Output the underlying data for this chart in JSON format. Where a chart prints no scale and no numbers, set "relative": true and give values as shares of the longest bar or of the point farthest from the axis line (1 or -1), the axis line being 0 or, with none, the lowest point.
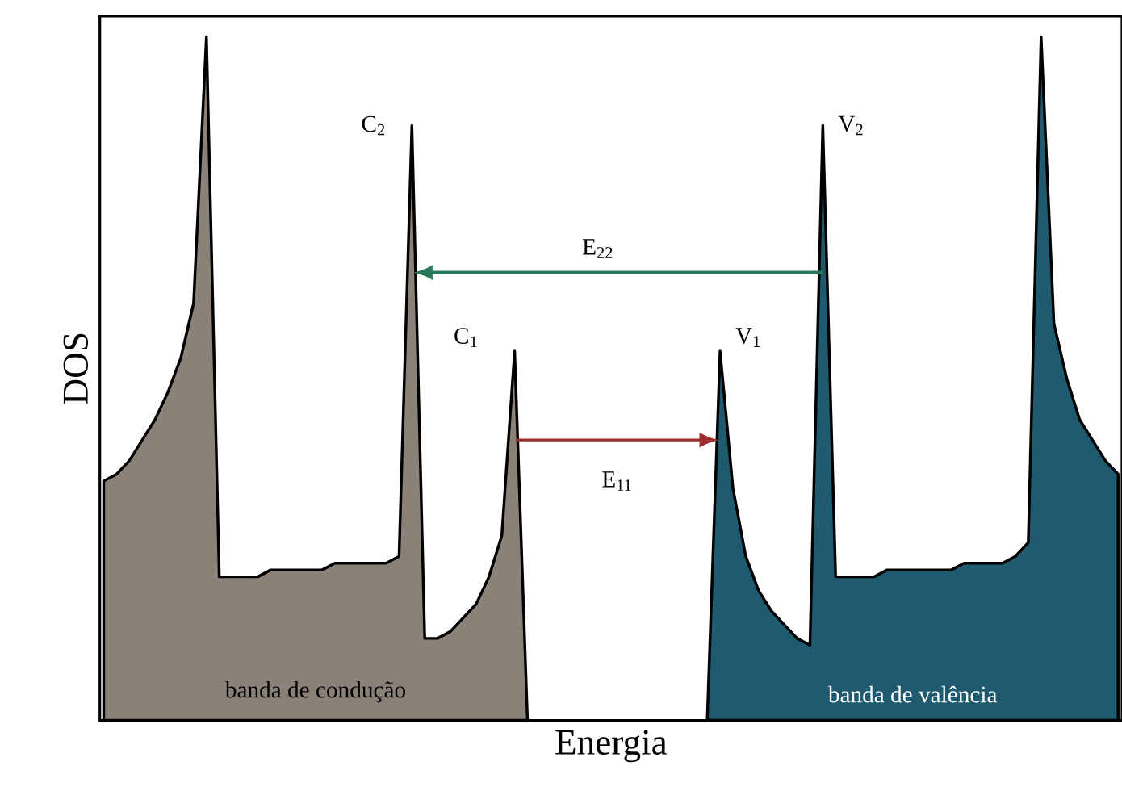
{
  "chart_data": {
    "type": "area",
    "relative": true,
    "xlabel": "Energia",
    "ylabel": "DOS",
    "categories": [
      null,
      null,
      null,
      null,
      null,
      null,
      null,
      null,
      null,
      null,
      null,
      null,
      null,
      null,
      null,
      null,
      null,
      null,
      null,
      null,
      null,
      null,
      null,
      null,
      null,
      null,
      null,
      null,
      null,
      null,
      null,
      null,
      null,
      null,
      null,
      null,
      null,
      null,
      null,
      null,
      null,
      null,
      null,
      null,
      null,
      null,
      null,
      null,
      null,
      null,
      null,
      null,
      null,
      null,
      null,
      null,
      null,
      null,
      null,
      null,
      null,
      null,
      null,
      null,
      null,
      null,
      null,
      null,
      null,
      null,
      null,
      null,
      null,
      null,
      null,
      null,
      null,
      null,
      null,
      null
    ],
    "series": [
      {
        "name": "banda de condução",
        "color": "#8a8279",
        "values": [
          0.35,
          0.36,
          0.38,
          0.41,
          0.44,
          0.48,
          0.53,
          0.61,
          1,
          0.21,
          0.21,
          0.21,
          0.21,
          0.22,
          0.22,
          0.22,
          0.22,
          0.22,
          0.23,
          0.23,
          0.23,
          0.23,
          0.23,
          0.24,
          0.87,
          0.12,
          0.12,
          0.13,
          0.15,
          0.17,
          0.21,
          0.27,
          0.54,
          0,
          null,
          null,
          null,
          null,
          null,
          null,
          null,
          null,
          null,
          null,
          null,
          null,
          null,
          null,
          null,
          null,
          null,
          null,
          null,
          null,
          null,
          null,
          null,
          null,
          null,
          null,
          null,
          null,
          null,
          null,
          null,
          null,
          null,
          null,
          null,
          null,
          null,
          null,
          null,
          null,
          null,
          null,
          null,
          null,
          null,
          null
        ]
      },
      {
        "name": "banda de valência",
        "color": "#1f5a6e",
        "values": [
          null,
          null,
          null,
          null,
          null,
          null,
          null,
          null,
          null,
          null,
          null,
          null,
          null,
          null,
          null,
          null,
          null,
          null,
          null,
          null,
          null,
          null,
          null,
          null,
          null,
          null,
          null,
          null,
          null,
          null,
          null,
          null,
          null,
          null,
          null,
          null,
          null,
          null,
          null,
          null,
          null,
          null,
          null,
          null,
          null,
          null,
          null,
          0,
          0.54,
          0.34,
          0.24,
          0.19,
          0.16,
          0.14,
          0.12,
          0.11,
          0.87,
          0.21,
          0.21,
          0.21,
          0.21,
          0.22,
          0.22,
          0.22,
          0.22,
          0.22,
          0.22,
          0.23,
          0.23,
          0.23,
          0.23,
          0.24,
          0.26,
          1,
          0.58,
          0.5,
          0.44,
          0.41,
          0.38,
          0.36
        ]
      }
    ],
    "annotations": [
      "C$_{2}$",
      "C$_{1}$",
      "V$_{1}$",
      "V$_{2}$",
      "E$_{22}$",
      "E$_{11}$"
    ]
  }
}
